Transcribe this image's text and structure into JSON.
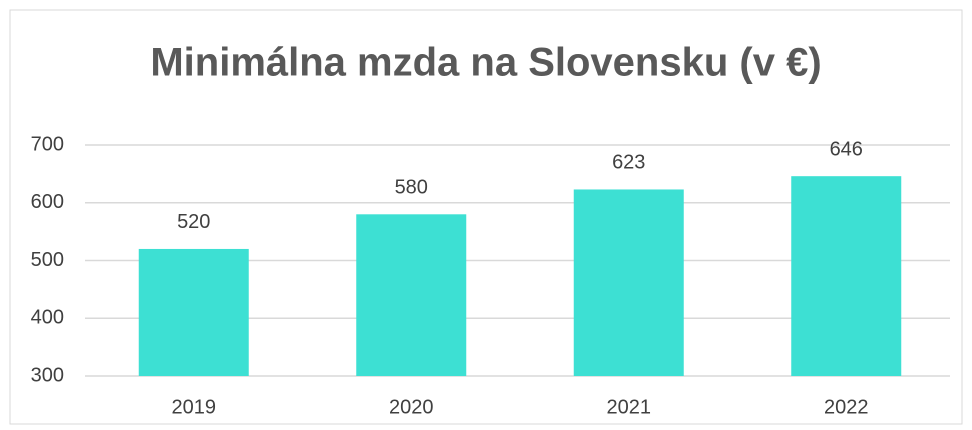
{
  "chart_data": {
    "type": "bar",
    "title": "Minimálna mzda na Slovensku (v €)",
    "categories": [
      "2019",
      "2020",
      "2021",
      "2022"
    ],
    "values": [
      520,
      580,
      623,
      646
    ],
    "color": "#3de0d3",
    "ylim": [
      300,
      700
    ],
    "yticks": [
      300,
      400,
      500,
      600,
      700
    ],
    "grid": true
  }
}
